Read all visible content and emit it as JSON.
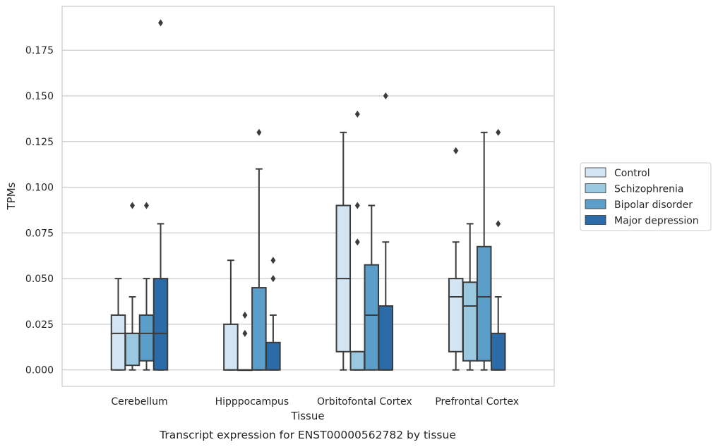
{
  "chart_data": {
    "type": "box",
    "title": "",
    "subtitle": "Transcript expression for ENST00000562782 by tissue",
    "xlabel": "Tissue",
    "ylabel": "TPMs",
    "ylim": [
      -0.009,
      0.199
    ],
    "yticks": [
      0.0,
      0.025,
      0.05,
      0.075,
      0.1,
      0.125,
      0.15,
      0.175
    ],
    "ytick_labels": [
      "0.000",
      "0.025",
      "0.050",
      "0.075",
      "0.100",
      "0.125",
      "0.150",
      "0.175"
    ],
    "grid": "horizontal",
    "legend_position": "right",
    "categories": [
      "Cerebellum",
      "Hipppocampus",
      "Orbitofontal Cortex",
      "Prefrontal Cortex"
    ],
    "series": [
      {
        "name": "Control",
        "color": "#d3e4f3",
        "boxes": [
          {
            "q1": 0.0,
            "median": 0.02,
            "q3": 0.03,
            "whislo": 0.0,
            "whishi": 0.05,
            "outliers": []
          },
          {
            "q1": 0.0,
            "median": 0.0,
            "q3": 0.025,
            "whislo": 0.0,
            "whishi": 0.06,
            "outliers": []
          },
          {
            "q1": 0.01,
            "median": 0.05,
            "q3": 0.09,
            "whislo": 0.0,
            "whishi": 0.13,
            "outliers": []
          },
          {
            "q1": 0.01,
            "median": 0.04,
            "q3": 0.05,
            "whislo": 0.0,
            "whishi": 0.07,
            "outliers": [
              0.12
            ]
          }
        ]
      },
      {
        "name": "Schizophrenia",
        "color": "#9ac8e0",
        "boxes": [
          {
            "q1": 0.0025,
            "median": 0.02,
            "q3": 0.02,
            "whislo": 0.0,
            "whishi": 0.04,
            "outliers": [
              0.09
            ]
          },
          {
            "q1": 0.0,
            "median": 0.0,
            "q3": 0.0,
            "whislo": 0.0,
            "whishi": 0.0,
            "outliers": [
              0.02,
              0.03
            ]
          },
          {
            "q1": 0.0,
            "median": 0.0,
            "q3": 0.01,
            "whislo": 0.0,
            "whishi": 0.01,
            "outliers": [
              0.07,
              0.09,
              0.14
            ]
          },
          {
            "q1": 0.005,
            "median": 0.035,
            "q3": 0.048,
            "whislo": 0.0,
            "whishi": 0.08,
            "outliers": []
          }
        ]
      },
      {
        "name": "Bipolar disorder",
        "color": "#5a9ec9",
        "boxes": [
          {
            "q1": 0.005,
            "median": 0.02,
            "q3": 0.03,
            "whislo": 0.0,
            "whishi": 0.05,
            "outliers": [
              0.09
            ]
          },
          {
            "q1": 0.0,
            "median": 0.0,
            "q3": 0.045,
            "whislo": 0.0,
            "whishi": 0.11,
            "outliers": [
              0.13
            ]
          },
          {
            "q1": 0.0,
            "median": 0.03,
            "q3": 0.0575,
            "whislo": 0.0,
            "whishi": 0.09,
            "outliers": []
          },
          {
            "q1": 0.005,
            "median": 0.04,
            "q3": 0.0675,
            "whislo": 0.0,
            "whishi": 0.13,
            "outliers": []
          }
        ]
      },
      {
        "name": "Major depression",
        "color": "#2b6ba8",
        "boxes": [
          {
            "q1": 0.0,
            "median": 0.02,
            "q3": 0.05,
            "whislo": 0.0,
            "whishi": 0.08,
            "outliers": [
              0.19
            ]
          },
          {
            "q1": 0.0,
            "median": 0.0,
            "q3": 0.015,
            "whislo": 0.0,
            "whishi": 0.03,
            "outliers": [
              0.05,
              0.06
            ]
          },
          {
            "q1": 0.0,
            "median": 0.0,
            "q3": 0.035,
            "whislo": 0.0,
            "whishi": 0.07,
            "outliers": [
              0.15
            ]
          },
          {
            "q1": 0.0,
            "median": 0.0,
            "q3": 0.02,
            "whislo": 0.0,
            "whishi": 0.04,
            "outliers": [
              0.08,
              0.13
            ]
          }
        ]
      }
    ]
  }
}
